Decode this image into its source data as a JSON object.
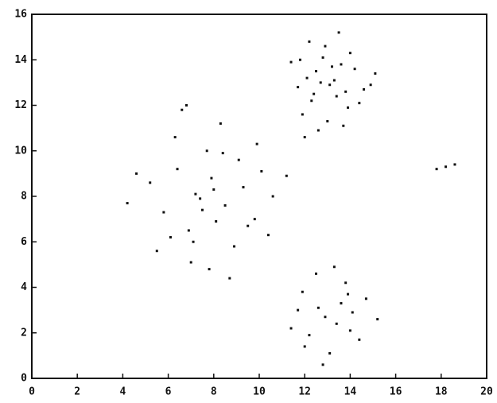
{
  "chart_data": {
    "type": "scatter",
    "x": [
      12.1,
      13.4,
      12.8,
      14.2,
      11.7,
      13.9,
      12.5,
      13.1,
      14.6,
      12.9,
      13.6,
      11.9,
      12.3,
      14.0,
      13.3,
      12.6,
      15.1,
      11.4,
      13.8,
      12.2,
      13.0,
      14.4,
      12.7,
      13.5,
      11.8,
      14.9,
      12.4,
      13.2,
      13.7,
      12.0,
      7.2,
      8.5,
      6.4,
      9.3,
      8.1,
      5.8,
      7.7,
      10.1,
      8.9,
      6.9,
      7.4,
      9.8,
      5.2,
      8.3,
      7.0,
      9.1,
      6.1,
      10.6,
      7.9,
      8.7,
      4.6,
      6.6,
      9.5,
      7.5,
      8.0,
      5.5,
      11.2,
      6.3,
      8.4,
      7.1,
      9.9,
      4.2,
      7.8,
      6.8,
      10.4,
      12.6,
      13.4,
      11.9,
      14.1,
      12.2,
      13.8,
      12.9,
      14.7,
      11.4,
      13.1,
      12.5,
      14.4,
      13.6,
      11.7,
      15.2,
      12.8,
      13.3,
      14.0,
      12.0,
      13.9,
      17.8,
      18.2,
      18.6
    ],
    "values": [
      13.2,
      12.4,
      14.1,
      13.6,
      12.8,
      11.9,
      13.5,
      12.9,
      12.7,
      14.6,
      13.8,
      11.6,
      12.2,
      14.3,
      13.1,
      10.9,
      13.4,
      13.9,
      12.6,
      14.8,
      11.3,
      12.1,
      13.0,
      15.2,
      14.0,
      12.9,
      12.5,
      13.7,
      11.1,
      10.6,
      8.1,
      7.6,
      9.2,
      8.4,
      6.9,
      7.3,
      10.0,
      9.1,
      5.8,
      6.5,
      7.9,
      7.0,
      8.6,
      11.2,
      5.1,
      9.6,
      6.2,
      8.0,
      8.8,
      4.4,
      9.0,
      11.8,
      6.7,
      7.4,
      8.3,
      5.6,
      8.9,
      10.6,
      9.9,
      6.0,
      10.3,
      7.7,
      4.8,
      12.0,
      6.3,
      3.1,
      2.4,
      3.8,
      2.9,
      1.9,
      4.2,
      2.7,
      3.5,
      2.2,
      1.1,
      4.6,
      1.7,
      3.3,
      3.0,
      2.6,
      0.6,
      4.9,
      2.1,
      1.4,
      3.7,
      9.2,
      9.3,
      9.4
    ],
    "color": "#111111",
    "xlim": [
      0,
      20
    ],
    "xticks": [
      0,
      2,
      4,
      6,
      8,
      10,
      12,
      14,
      16,
      18,
      20
    ],
    "ylim": [
      0,
      16
    ],
    "yticks": [
      0,
      2,
      4,
      6,
      8,
      10,
      12,
      14,
      16
    ]
  }
}
